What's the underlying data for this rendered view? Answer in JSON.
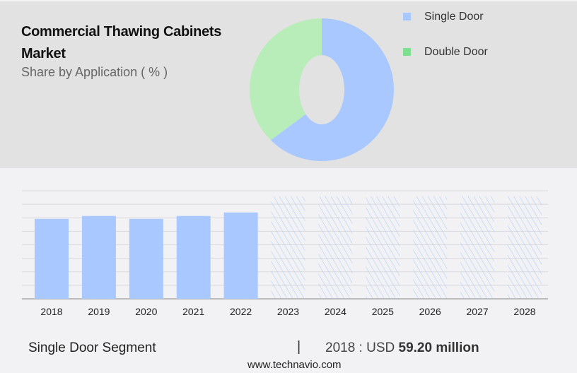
{
  "title": "Commercial Thawing Cabinets Market",
  "subtitle": "Share by Application ( % )",
  "chart_data": [
    {
      "type": "pie",
      "donut": true,
      "title": "Commercial Thawing Cabinets Market",
      "subtitle": "Share by Application ( % )",
      "legend_placement": "top-right",
      "slices": [
        {
          "name": "Single Door",
          "value": 62.5,
          "color": "#a8c8ff"
        },
        {
          "name": "Double Door",
          "value": 37.5,
          "color": "#b8edba"
        }
      ],
      "legend_colors": [
        "#a8c8ff",
        "#7ee08f"
      ]
    },
    {
      "type": "bar",
      "categories": [
        "2018",
        "2019",
        "2020",
        "2021",
        "2022",
        "2023",
        "2024",
        "2025",
        "2026",
        "2027",
        "2028"
      ],
      "values": [
        59.2,
        61.3,
        59.2,
        61.3,
        63.9,
        null,
        null,
        null,
        null,
        null,
        null
      ],
      "forecast_categories": [
        "2023",
        "2024",
        "2025",
        "2026",
        "2027",
        "2028"
      ],
      "bar_color": "#a8c8ff",
      "forecast_style": "hatched",
      "grid": true,
      "ylim": [
        0,
        80
      ]
    }
  ],
  "footer": {
    "segment": "Single Door Segment",
    "separator": "|",
    "year_label": "2018 : USD",
    "value": "59.20 million",
    "site": "www.technavio.com"
  }
}
